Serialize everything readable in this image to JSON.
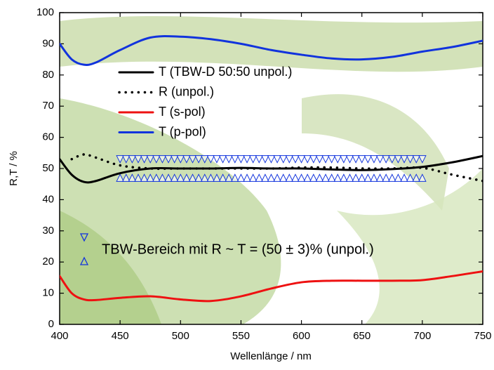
{
  "chart_data": {
    "type": "line",
    "x_label": "Wellenlänge / nm",
    "y_label": "R,T / %",
    "x": [
      400,
      410,
      420,
      430,
      450,
      475,
      500,
      525,
      550,
      575,
      600,
      625,
      650,
      675,
      700,
      725,
      750
    ],
    "series": [
      {
        "name": "T (TBW-D 50:50 unpol.)",
        "color": "#000000",
        "dash": "solid",
        "values": [
          53,
          48,
          45.7,
          46,
          48.5,
          50,
          50,
          50,
          50.2,
          50,
          50,
          49.7,
          49.5,
          49.8,
          50.5,
          52,
          54
        ]
      },
      {
        "name": "R (unpol.)",
        "color": "#000000",
        "dash": "dotted",
        "values": [
          null,
          53,
          54.5,
          53.5,
          51,
          50,
          50,
          50,
          50,
          50,
          50.3,
          50.3,
          50,
          50,
          50.2,
          48,
          46
        ]
      },
      {
        "name": "T (s-pol)",
        "color": "#ee1111",
        "dash": "solid",
        "values": [
          15.5,
          10,
          8,
          7.8,
          8.5,
          9,
          8,
          7.5,
          9,
          11.5,
          13.5,
          14,
          14,
          14,
          14.2,
          15.5,
          17
        ]
      },
      {
        "name": "T (p-pol)",
        "color": "#1133dd",
        "dash": "solid",
        "values": [
          90,
          85,
          83.3,
          84,
          88,
          92,
          92.3,
          91.5,
          90,
          88,
          86.5,
          85.3,
          85,
          85.8,
          87.5,
          89,
          91
        ]
      }
    ],
    "band": {
      "label": "TBW-Bereich mit R ~ T = (50 ± 3)% (unpol.)",
      "color": "#1133dd",
      "upper": 53,
      "lower": 47,
      "x": [
        450,
        455,
        460,
        465,
        470,
        475,
        480,
        485,
        490,
        495,
        500,
        505,
        510,
        515,
        520,
        525,
        530,
        535,
        540,
        545,
        550,
        555,
        560,
        565,
        570,
        575,
        580,
        585,
        590,
        595,
        600,
        605,
        610,
        615,
        620,
        625,
        630,
        635,
        640,
        645,
        650,
        655,
        660,
        665,
        670,
        675,
        680,
        685,
        690,
        695,
        700
      ]
    },
    "xlim": [
      400,
      750
    ],
    "ylim": [
      0,
      100
    ],
    "xticks": [
      400,
      450,
      500,
      550,
      600,
      650,
      700,
      750
    ],
    "yticks": [
      0,
      10,
      20,
      30,
      40,
      50,
      60,
      70,
      80,
      90,
      100
    ]
  }
}
